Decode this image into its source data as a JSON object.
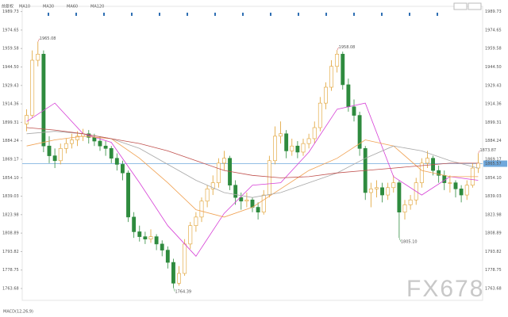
{
  "chart_data": {
    "type": "candlestick",
    "title": "前复权",
    "footer": "MACD(12,26,9)",
    "watermark": "FX678",
    "up_color": "#e0a030",
    "down_color": "#2e8b3e",
    "ylim": [
      1754,
      1994
    ],
    "yticks": [
      1989.73,
      1974.65,
      1959.58,
      {
        "value": 1944.5,
        "label": "1944.50"
      },
      1929.43,
      1914.36,
      1899.31,
      1884.24,
      1869.17,
      {
        "value": 1854.1,
        "label": "1854.10"
      },
      1839.03,
      1823.98,
      1808.89,
      1793.82,
      1778.75,
      1763.68
    ],
    "ohlc": [
      [
        1898,
        1910,
        1892,
        1905
      ],
      [
        1905,
        1958,
        1903,
        1950
      ],
      [
        1950,
        1965.08,
        1945,
        1955
      ],
      [
        1955,
        1958,
        1875,
        1880
      ],
      [
        1880,
        1888,
        1866,
        1872
      ],
      [
        1872,
        1878,
        1862,
        1868
      ],
      [
        1868,
        1882,
        1865,
        1878
      ],
      [
        1878,
        1886,
        1874,
        1882
      ],
      [
        1882,
        1890,
        1878,
        1885
      ],
      [
        1885,
        1892,
        1880,
        1888
      ],
      [
        1888,
        1894,
        1884,
        1890
      ],
      [
        1890,
        1893,
        1882,
        1887
      ],
      [
        1887,
        1890,
        1880,
        1884
      ],
      [
        1884,
        1888,
        1876,
        1880
      ],
      [
        1880,
        1884,
        1872,
        1878
      ],
      [
        1878,
        1880,
        1866,
        1870
      ],
      [
        1870,
        1874,
        1860,
        1865
      ],
      [
        1865,
        1868,
        1852,
        1858
      ],
      [
        1858,
        1860,
        1818,
        1822
      ],
      [
        1822,
        1826,
        1805,
        1810
      ],
      [
        1810,
        1815,
        1802,
        1806
      ],
      [
        1806,
        1810,
        1800,
        1804
      ],
      [
        1804,
        1812,
        1801,
        1806
      ],
      [
        1806,
        1808,
        1795,
        1800
      ],
      [
        1800,
        1803,
        1790,
        1795
      ],
      [
        1795,
        1798,
        1780,
        1785
      ],
      [
        1785,
        1788,
        1764.39,
        1768
      ],
      [
        1768,
        1782,
        1766,
        1776
      ],
      [
        1776,
        1804,
        1774,
        1800
      ],
      [
        1800,
        1818,
        1796,
        1815
      ],
      [
        1815,
        1826,
        1810,
        1822
      ],
      [
        1822,
        1838,
        1818,
        1835
      ],
      [
        1835,
        1848,
        1830,
        1845
      ],
      [
        1845,
        1856,
        1840,
        1850
      ],
      [
        1850,
        1870,
        1846,
        1866
      ],
      [
        1866,
        1876,
        1860,
        1870
      ],
      [
        1870,
        1872,
        1844,
        1848
      ],
      [
        1848,
        1852,
        1832,
        1838
      ],
      [
        1838,
        1842,
        1828,
        1835
      ],
      [
        1835,
        1842,
        1830,
        1836
      ],
      [
        1836,
        1838,
        1826,
        1830
      ],
      [
        1830,
        1834,
        1820,
        1826
      ],
      [
        1826,
        1844,
        1824,
        1840
      ],
      [
        1840,
        1872,
        1838,
        1868
      ],
      [
        1868,
        1896,
        1865,
        1888
      ],
      [
        1888,
        1900,
        1882,
        1890
      ],
      [
        1890,
        1893,
        1870,
        1876
      ],
      [
        1876,
        1886,
        1872,
        1880
      ],
      [
        1880,
        1884,
        1870,
        1875
      ],
      [
        1875,
        1886,
        1872,
        1882
      ],
      [
        1882,
        1890,
        1878,
        1886
      ],
      [
        1886,
        1900,
        1882,
        1895
      ],
      [
        1895,
        1920,
        1892,
        1915
      ],
      [
        1915,
        1932,
        1910,
        1928
      ],
      [
        1928,
        1950,
        1925,
        1945
      ],
      [
        1945,
        1958.08,
        1940,
        1955
      ],
      [
        1955,
        1957,
        1926,
        1930
      ],
      [
        1930,
        1935,
        1908,
        1912
      ],
      [
        1912,
        1918,
        1900,
        1905
      ],
      [
        1905,
        1908,
        1872,
        1878
      ],
      [
        1878,
        1880,
        1836,
        1842
      ],
      [
        1842,
        1850,
        1830,
        1845
      ],
      [
        1845,
        1852,
        1838,
        1846
      ],
      [
        1846,
        1850,
        1834,
        1840
      ],
      [
        1840,
        1850,
        1836,
        1846
      ],
      [
        1846,
        1856,
        1842,
        1850
      ],
      [
        1850,
        1852,
        1805.1,
        1826
      ],
      [
        1826,
        1836,
        1820,
        1832
      ],
      [
        1832,
        1840,
        1828,
        1836
      ],
      [
        1836,
        1854,
        1832,
        1850
      ],
      [
        1850,
        1870,
        1846,
        1866
      ],
      [
        1866,
        1876,
        1862,
        1870
      ],
      [
        1870,
        1872,
        1856,
        1860
      ],
      [
        1860,
        1864,
        1850,
        1856
      ],
      [
        1856,
        1860,
        1844,
        1850
      ],
      [
        1850,
        1856,
        1842,
        1850
      ],
      [
        1850,
        1852,
        1838,
        1845
      ],
      [
        1845,
        1848,
        1834,
        1840
      ],
      [
        1840,
        1852,
        1836,
        1848
      ],
      [
        1848,
        1866,
        1846,
        1862
      ],
      [
        1862,
        1873.87,
        1858,
        1866
      ]
    ],
    "series": [
      {
        "name": "MA10",
        "color": "#d63fd6",
        "x": [
          0,
          5,
          10,
          15,
          20,
          25,
          30,
          35,
          40,
          45,
          50,
          55,
          60,
          65,
          70,
          75,
          80
        ],
        "values": [
          1900,
          1915,
          1890,
          1883,
          1850,
          1815,
          1790,
          1825,
          1848,
          1850,
          1875,
          1910,
          1915,
          1855,
          1840,
          1855,
          1852
        ]
      },
      {
        "name": "MA30",
        "color": "#f0a050",
        "x": [
          0,
          5,
          10,
          15,
          20,
          25,
          30,
          35,
          40,
          45,
          50,
          55,
          60,
          65,
          70,
          75,
          80
        ],
        "values": [
          1880,
          1885,
          1888,
          1886,
          1870,
          1850,
          1828,
          1822,
          1830,
          1845,
          1860,
          1870,
          1885,
          1880,
          1860,
          1855,
          1855
        ]
      },
      {
        "name": "MA60",
        "color": "#a8a8a8",
        "x": [
          0,
          5,
          10,
          15,
          20,
          25,
          30,
          35,
          40,
          45,
          50,
          55,
          60,
          65,
          70,
          75,
          80
        ],
        "values": [
          1890,
          1892,
          1890,
          1886,
          1878,
          1865,
          1852,
          1842,
          1838,
          1842,
          1850,
          1858,
          1870,
          1880,
          1876,
          1868,
          1862
        ]
      },
      {
        "name": "MA120",
        "color": "#c0504d",
        "x": [
          0,
          5,
          10,
          15,
          20,
          25,
          30,
          35,
          40,
          45,
          50,
          55,
          60,
          65,
          70,
          75,
          80
        ],
        "values": [
          1895,
          1893,
          1890,
          1886,
          1882,
          1876,
          1868,
          1860,
          1856,
          1854,
          1855,
          1858,
          1860,
          1862,
          1864,
          1866,
          1866
        ]
      }
    ],
    "annotations": [
      {
        "value": 1965.08,
        "label": "1965.08"
      },
      {
        "value": 1958.08,
        "label": "1958.08"
      },
      {
        "value": 1764.39,
        "label": "1764.39"
      },
      {
        "value": 1805.1,
        "label": "1805.10"
      },
      {
        "value": 1873.87,
        "label": "1873.87"
      }
    ],
    "current_price": 1865.57,
    "current_color": "#6fa8dc"
  }
}
